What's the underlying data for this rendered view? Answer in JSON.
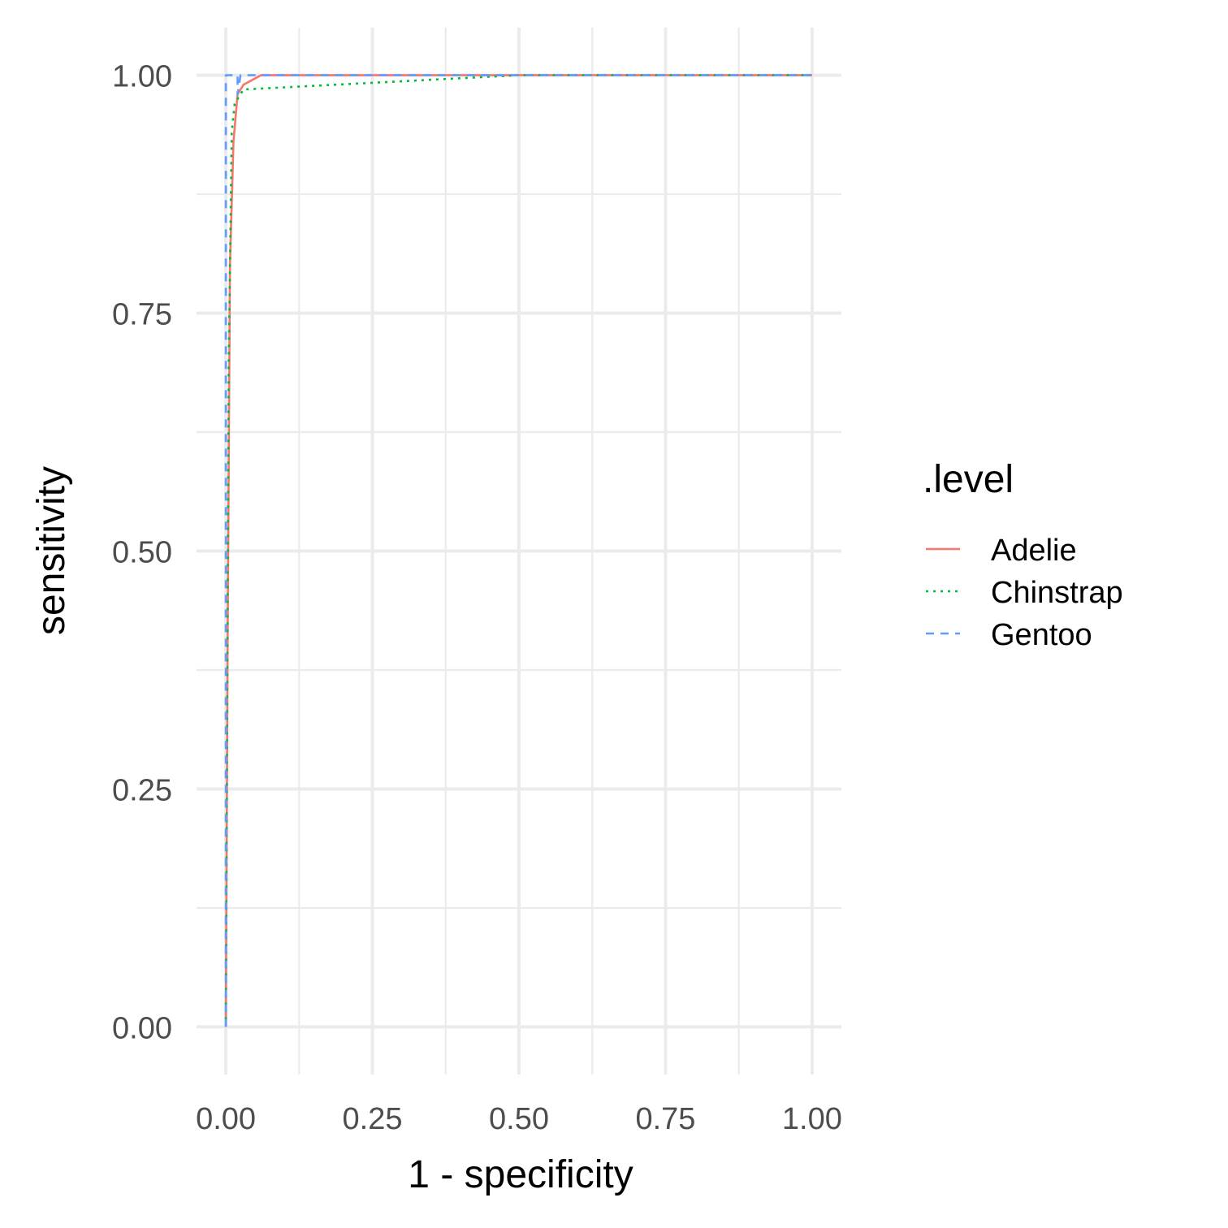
{
  "chart_data": {
    "type": "line",
    "xlabel": "1 - specificity",
    "ylabel": "sensitivity",
    "xlim": [
      -0.05,
      1.05
    ],
    "ylim": [
      -0.05,
      1.05
    ],
    "x_ticks": [
      "0.00",
      "0.25",
      "0.50",
      "0.75",
      "1.00"
    ],
    "y_ticks": [
      "0.00",
      "0.25",
      "0.50",
      "0.75",
      "1.00"
    ],
    "x_tick_values": [
      0,
      0.25,
      0.5,
      0.75,
      1
    ],
    "y_tick_values": [
      0,
      0.25,
      0.5,
      0.75,
      1
    ],
    "minor_ticks": [
      0.125,
      0.375,
      0.625,
      0.875
    ],
    "grid": true,
    "legend": {
      "title": ".level",
      "position": "right"
    },
    "series": [
      {
        "name": "Adelie",
        "color": "#F8766D",
        "linetype": "solid",
        "x": [
          0,
          0.003,
          0.007,
          0.013,
          0.02,
          0.03,
          0.045,
          0.06,
          1
        ],
        "y": [
          0,
          0.4,
          0.8,
          0.93,
          0.98,
          0.99,
          0.995,
          1,
          1
        ]
      },
      {
        "name": "Chinstrap",
        "color": "#00BA38",
        "linetype": "dotted",
        "x": [
          0,
          0.002,
          0.005,
          0.01,
          0.015,
          0.03,
          0.5,
          1
        ],
        "y": [
          0,
          0.3,
          0.7,
          0.94,
          0.97,
          0.985,
          1,
          1
        ]
      },
      {
        "name": "Gentoo",
        "color": "#619CFF",
        "linetype": "dashed",
        "x": [
          0,
          0,
          0.02,
          0.02,
          0.025,
          1
        ],
        "y": [
          0,
          1,
          1,
          0.98,
          1,
          1
        ]
      }
    ]
  }
}
